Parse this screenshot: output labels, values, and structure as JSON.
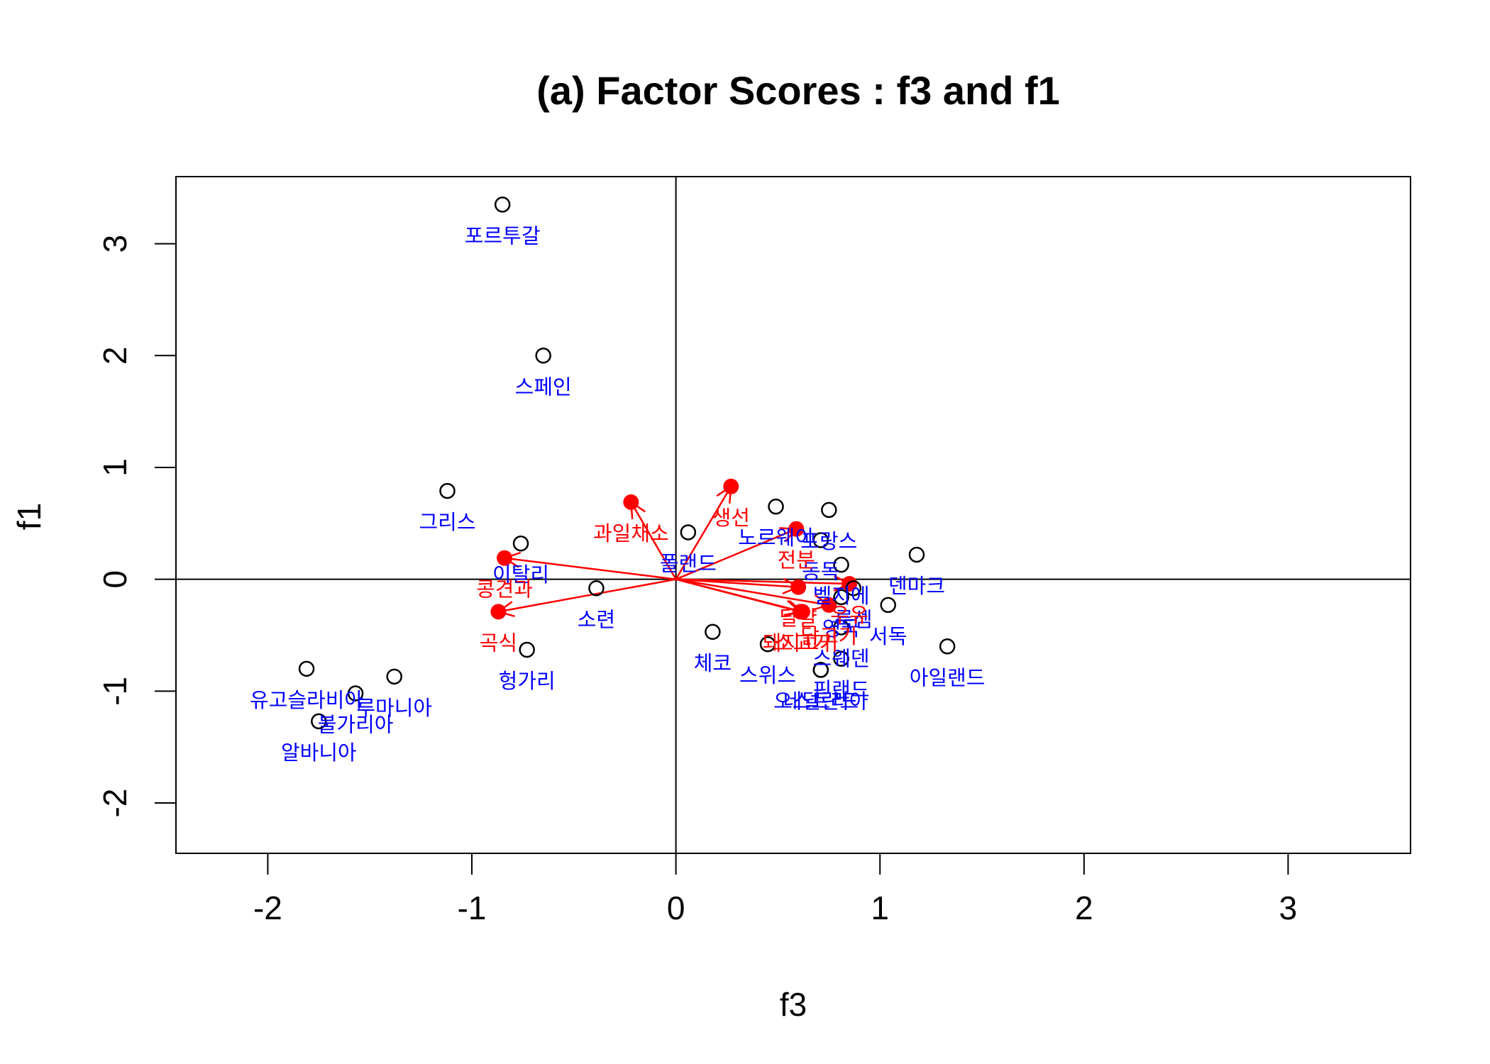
{
  "chart_data": {
    "type": "scatter",
    "title": "(a) Factor Scores : f3 and f1",
    "xlabel": "f3",
    "ylabel": "f1",
    "xlim": [
      -2.45,
      3.6
    ],
    "ylim": [
      -2.45,
      3.6
    ],
    "x_ticks": [
      -2,
      -1,
      0,
      1,
      2,
      3
    ],
    "y_ticks": [
      -2,
      -1,
      0,
      1,
      2,
      3
    ],
    "x_tick_labels": [
      "-2",
      "-1",
      "0",
      "1",
      "2",
      "3"
    ],
    "y_tick_labels": [
      "-2",
      "-1",
      "0",
      "1",
      "2",
      "3"
    ],
    "reference_lines": {
      "h": 0,
      "v": 0
    },
    "colors": {
      "points": "#000000",
      "country_labels": "#0000ff",
      "variables": "#ff0000"
    },
    "countries": [
      {
        "label": "포르투갈",
        "x": -0.85,
        "y": 3.35
      },
      {
        "label": "스페인",
        "x": -0.65,
        "y": 2.0
      },
      {
        "label": "그리스",
        "x": -1.12,
        "y": 0.79
      },
      {
        "label": "이탈리",
        "x": -0.76,
        "y": 0.32
      },
      {
        "label": "소련",
        "x": -0.39,
        "y": -0.08
      },
      {
        "label": "헝가리",
        "x": -0.73,
        "y": -0.63
      },
      {
        "label": "폴랜드",
        "x": 0.06,
        "y": 0.42
      },
      {
        "label": "체코",
        "x": 0.18,
        "y": -0.47
      },
      {
        "label": "스위스",
        "x": 0.45,
        "y": -0.58
      },
      {
        "label": "노르웨이",
        "x": 0.49,
        "y": 0.65
      },
      {
        "label": "프랑스",
        "x": 0.75,
        "y": 0.62
      },
      {
        "label": "동독",
        "x": 0.71,
        "y": 0.35
      },
      {
        "label": "벨지에",
        "x": 0.81,
        "y": 0.13
      },
      {
        "label": "룩셈",
        "x": 0.87,
        "y": -0.08
      },
      {
        "label": "영국",
        "x": 0.81,
        "y": -0.16
      },
      {
        "label": "스웨덴",
        "x": 0.81,
        "y": -0.43
      },
      {
        "label": "핀랜드",
        "x": 0.81,
        "y": -0.71
      },
      {
        "label": "네덜란드",
        "x": 0.71,
        "y": -0.81
      },
      {
        "label": "오스트리아",
        "x": 0.71,
        "y": -0.81
      },
      {
        "label": "서독",
        "x": 1.04,
        "y": -0.23
      },
      {
        "label": "덴마크",
        "x": 1.18,
        "y": 0.22
      },
      {
        "label": "아일랜드",
        "x": 1.33,
        "y": -0.6
      },
      {
        "label": "유고슬라비아",
        "x": -1.81,
        "y": -0.8
      },
      {
        "label": "루마니아",
        "x": -1.38,
        "y": -0.87
      },
      {
        "label": "불가리아",
        "x": -1.57,
        "y": -1.02
      },
      {
        "label": "알바니아",
        "x": -1.75,
        "y": -1.27
      }
    ],
    "variables": [
      {
        "label": "생선",
        "x": 0.27,
        "y": 0.83
      },
      {
        "label": "과일채소",
        "x": -0.22,
        "y": 0.69
      },
      {
        "label": "전분",
        "x": 0.59,
        "y": 0.45
      },
      {
        "label": "콩견과",
        "x": -0.84,
        "y": 0.19
      },
      {
        "label": "곡식",
        "x": -0.87,
        "y": -0.29
      },
      {
        "label": "우유",
        "x": 0.85,
        "y": -0.04
      },
      {
        "label": "달걀",
        "x": 0.6,
        "y": -0.07
      },
      {
        "label": "소고기",
        "x": 0.62,
        "y": -0.29
      },
      {
        "label": "닭고기",
        "x": 0.75,
        "y": -0.23
      },
      {
        "label": "돼지고기",
        "x": 0.61,
        "y": -0.29
      }
    ]
  }
}
